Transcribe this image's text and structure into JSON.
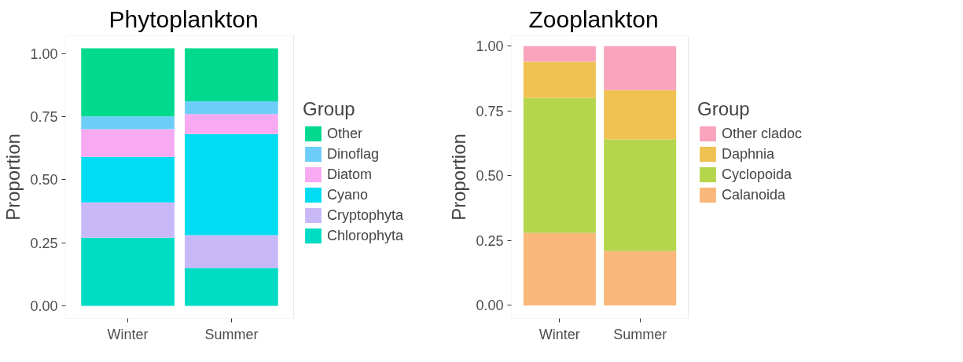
{
  "chart_data": [
    {
      "type": "bar",
      "title": "Phytoplankton",
      "ylabel": "Proportion",
      "legend_title": "Group",
      "categories": [
        "Winter",
        "Summer"
      ],
      "stacked": true,
      "legend": "right",
      "grid": false,
      "ylim": [
        -0.05,
        1.07
      ],
      "yticks": [
        {
          "value": 0,
          "label": "0.00"
        },
        {
          "value": 0.25,
          "label": "0.25"
        },
        {
          "value": 0.5,
          "label": "0.50"
        },
        {
          "value": 0.75,
          "label": "0.75"
        },
        {
          "value": 1,
          "label": "1.00"
        }
      ],
      "series": [
        {
          "name": "Chlorophyta",
          "color": "#00dcc4",
          "values": [
            0.27,
            0.15
          ]
        },
        {
          "name": "Cryptophyta",
          "color": "#c9b8f7",
          "values": [
            0.14,
            0.13
          ]
        },
        {
          "name": "Cyano",
          "color": "#00dcf2",
          "values": [
            0.18,
            0.4
          ]
        },
        {
          "name": "Diatom",
          "color": "#f7a9f2",
          "values": [
            0.11,
            0.08
          ]
        },
        {
          "name": "Dinoflag",
          "color": "#6ccef8",
          "values": [
            0.05,
            0.05
          ]
        },
        {
          "name": "Other",
          "color": "#00d98e",
          "values": [
            0.27,
            0.21
          ]
        }
      ]
    },
    {
      "type": "bar",
      "title": "Zooplankton",
      "ylabel": "Proportion",
      "legend_title": "Group",
      "categories": [
        "Winter",
        "Summer"
      ],
      "stacked": true,
      "legend": "right",
      "grid": false,
      "ylim": [
        -0.05,
        1.04
      ],
      "yticks": [
        {
          "value": 0,
          "label": "0.00"
        },
        {
          "value": 0.25,
          "label": "0.25"
        },
        {
          "value": 0.5,
          "label": "0.50"
        },
        {
          "value": 0.75,
          "label": "0.75"
        },
        {
          "value": 1,
          "label": "1.00"
        }
      ],
      "series": [
        {
          "name": "Calanoida",
          "color": "#f9b87a",
          "values": [
            0.28,
            0.21
          ]
        },
        {
          "name": "Cyclopoida",
          "color": "#b3d64b",
          "values": [
            0.52,
            0.43
          ]
        },
        {
          "name": "Daphnia",
          "color": "#efc253",
          "values": [
            0.14,
            0.19
          ]
        },
        {
          "name": "Other cladoc",
          "color": "#f9a3bd",
          "values": [
            0.06,
            0.17
          ]
        }
      ]
    }
  ]
}
